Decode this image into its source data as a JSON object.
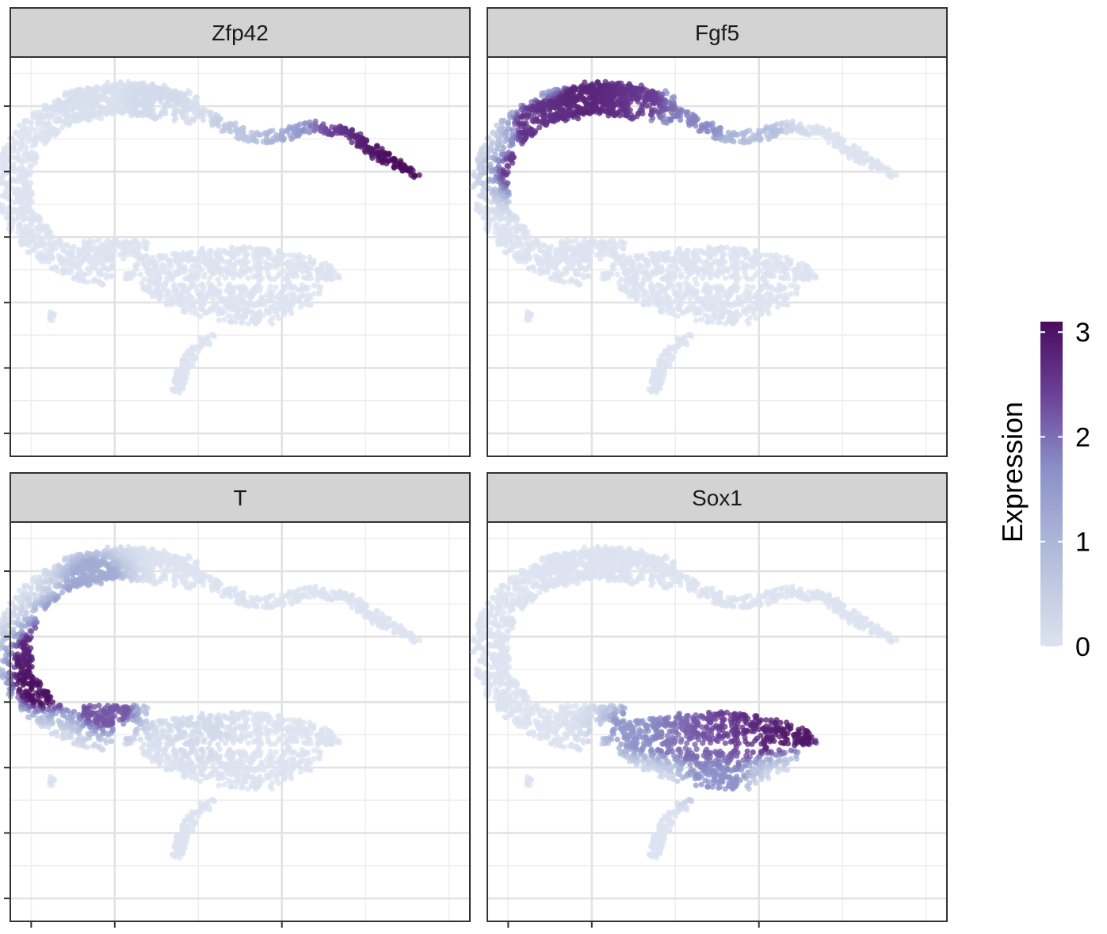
{
  "chart_data": {
    "type": "scatter",
    "layout": "facet-grid 2x2",
    "facets": [
      {
        "name": "Zfp42",
        "description": "high on right arm",
        "points": [
          {
            "x": 1.0,
            "y": 3.3,
            "v": 0.1
          },
          {
            "x": 3.0,
            "y": 3.1,
            "v": 0.2
          },
          {
            "x": 5.0,
            "y": 2.2,
            "v": 0.6
          },
          {
            "x": 6.2,
            "y": 2.0,
            "v": 1.2
          },
          {
            "x": 7.2,
            "y": 2.0,
            "v": 2.5
          },
          {
            "x": 8.0,
            "y": 1.6,
            "v": 3.0
          },
          {
            "x": 8.9,
            "y": 1.1,
            "v": 3.2
          }
        ]
      },
      {
        "name": "Fgf5",
        "description": "high on left upper arc",
        "points": [
          {
            "x": 0.4,
            "y": 1.0,
            "v": 2.5
          },
          {
            "x": 0.8,
            "y": 2.5,
            "v": 2.6
          },
          {
            "x": 2.0,
            "y": 3.2,
            "v": 2.8
          },
          {
            "x": 3.0,
            "y": 3.2,
            "v": 2.5
          },
          {
            "x": 4.5,
            "y": 2.6,
            "v": 1.8
          },
          {
            "x": 6.0,
            "y": 2.0,
            "v": 0.8
          }
        ]
      },
      {
        "name": "T",
        "description": "high on far left edge",
        "points": [
          {
            "x": 0.3,
            "y": -0.5,
            "v": 3.1
          },
          {
            "x": 0.3,
            "y": 0.5,
            "v": 2.8
          },
          {
            "x": 0.9,
            "y": 1.5,
            "v": 1.8
          },
          {
            "x": 1.5,
            "y": 2.8,
            "v": 1.2
          },
          {
            "x": 1.8,
            "y": -1.2,
            "v": 2.2
          },
          {
            "x": 4.0,
            "y": -2.0,
            "v": 0.2
          }
        ]
      },
      {
        "name": "Sox1",
        "description": "high in lower mass",
        "points": [
          {
            "x": 3.0,
            "y": -1.8,
            "v": 1.5
          },
          {
            "x": 4.0,
            "y": -1.9,
            "v": 2.0
          },
          {
            "x": 5.0,
            "y": -2.0,
            "v": 2.4
          },
          {
            "x": 6.0,
            "y": -1.8,
            "v": 2.8
          },
          {
            "x": 7.0,
            "y": -1.7,
            "v": 3.0
          },
          {
            "x": 5.0,
            "y": -3.3,
            "v": 1.6
          }
        ]
      }
    ],
    "colorbar": {
      "title": "Expression",
      "ticks": [
        "0",
        "1",
        "2",
        "3"
      ],
      "range": [
        0,
        3.1
      ],
      "low_color": "#dce3ef",
      "mid_color": "#8a8fc8",
      "high_color": "#4a0d5e"
    },
    "axes": {
      "xlim": [
        -0.5,
        10.5
      ],
      "ylim": [
        -7.7,
        4.5
      ],
      "x_major": [
        2,
        6
      ],
      "x_minor": [
        0,
        4,
        8,
        10
      ],
      "y_major": [
        -7,
        -5,
        -3,
        -1,
        1,
        3
      ],
      "y_minor": [
        -6,
        -4,
        -2,
        0,
        2,
        4
      ],
      "tick_labels": "none"
    },
    "colors": {
      "strip_bg": "#d3d3d3",
      "panel_border": "#333333",
      "grid_major": "#e2e2e2",
      "grid_minor": "#eeeeee"
    }
  }
}
